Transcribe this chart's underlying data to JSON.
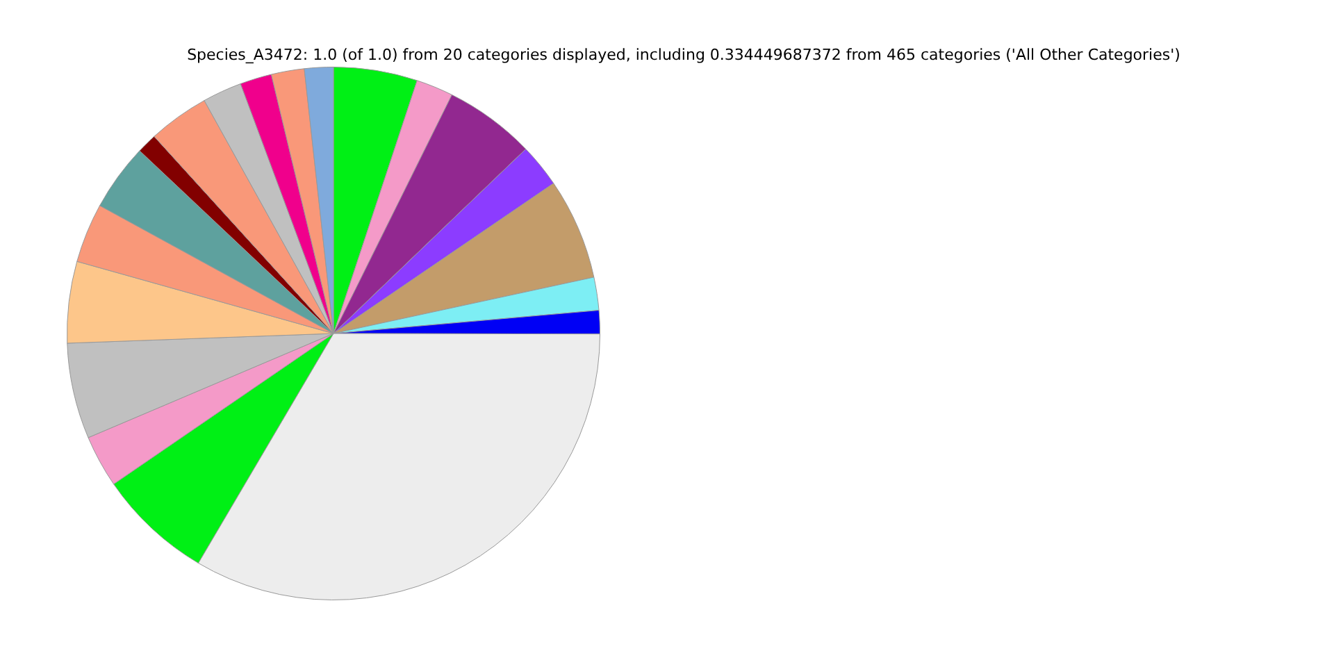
{
  "chart_data": {
    "type": "pie",
    "title": "Species_A3472: 1.0 (of 1.0) from 20 categories displayed, including 0.334449687372 from 465 categories ('All Other Categories')",
    "categories": [
      null,
      null,
      null,
      null,
      null,
      null,
      null,
      null,
      null,
      null,
      null,
      null,
      null,
      null,
      null,
      null,
      null,
      null,
      null,
      null
    ],
    "values": [
      5.08,
      2.25,
      5.5,
      2.64,
      6.14,
      2.0,
      1.42,
      33.44,
      6.97,
      3.17,
      5.81,
      4.94,
      3.61,
      4.06,
      1.22,
      3.69,
      2.39,
      1.92,
      2.0,
      1.75
    ],
    "colors": [
      "#00f015",
      "#f49ac8",
      "#922890",
      "#8c3cff",
      "#c39c6a",
      "#7deef4",
      "#0000f5",
      "#ededed",
      "#00f015",
      "#f49ac8",
      "#c0c0c0",
      "#fdc68a",
      "#f99879",
      "#5ea19e",
      "#820000",
      "#f99879",
      "#c0c0c0",
      "#f0008c",
      "#f99879",
      "#7faadc"
    ],
    "legend": false
  }
}
